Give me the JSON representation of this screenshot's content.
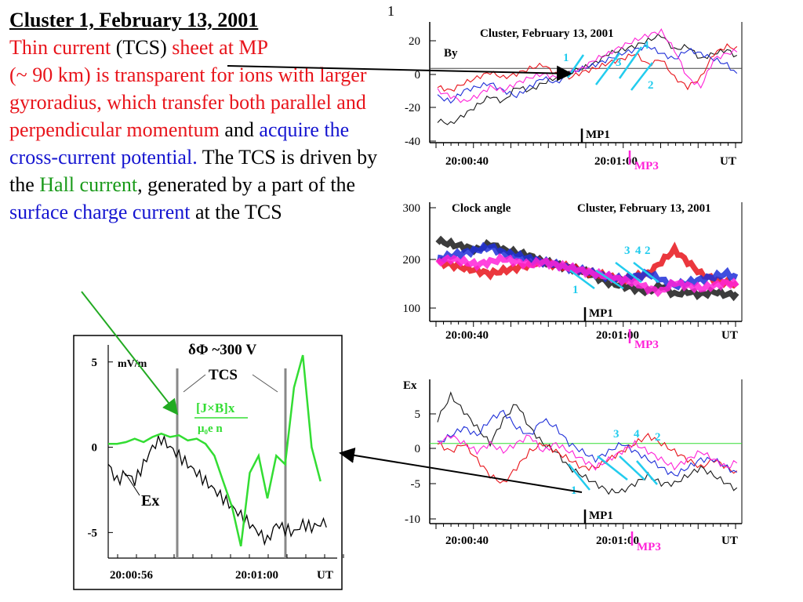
{
  "page_number": "1",
  "slide_text": {
    "title": "Cluster 1, February 13, 2001",
    "seg1": "Thin current",
    "seg2": " (TCS)",
    "seg3": " sheet at MP",
    "seg4": "(~ 90 km) is transparent for ions with larger gyroradius, which transfer both parallel and perpendicular momentum",
    "seg5": " and ",
    "seg6": "acquire the cross-current potential.",
    "seg7": " The TCS is driven by the ",
    "seg8": "Hall current",
    "seg9": ", generated by a part of the ",
    "seg10": "surface charge current",
    "seg11": " at the TCS"
  },
  "colors": {
    "black": "#1a1a1a",
    "red": "#e8141b",
    "blue": "#1f2fd8",
    "magenta": "#ff22d8",
    "cyan": "#22ccee",
    "green": "#33dd33"
  },
  "chart_data": [
    {
      "type": "line",
      "title": "Cluster, February 13, 2001",
      "ylabel": "By",
      "ylim": [
        -40,
        25
      ],
      "yticks": [
        "20",
        "0",
        "-20",
        "-40"
      ],
      "xticks": [
        "20:00:40",
        "20:01:00",
        "UT"
      ],
      "markers": [
        "MP1",
        "MP3"
      ],
      "spacecraft_labels": [
        "1",
        "2",
        "3",
        "4"
      ],
      "series": [
        {
          "name": "1",
          "color": "black",
          "values": [
            -28,
            -30,
            -25,
            -20,
            -15,
            -18,
            -10,
            -12,
            -8,
            -5,
            -2,
            0,
            3,
            8,
            10,
            12,
            15,
            18,
            10,
            12,
            5,
            8,
            10,
            5
          ]
        },
        {
          "name": "2",
          "color": "red",
          "values": [
            -10,
            -12,
            -8,
            -5,
            -2,
            -5,
            -3,
            0,
            2,
            -3,
            -5,
            -2,
            0,
            3,
            5,
            8,
            2,
            5,
            -5,
            -10,
            -5,
            8,
            12,
            10
          ]
        },
        {
          "name": "3",
          "color": "blue",
          "values": [
            -15,
            -18,
            -12,
            -10,
            -8,
            -12,
            -15,
            -10,
            -5,
            -8,
            -3,
            0,
            2,
            5,
            8,
            10,
            12,
            8,
            5,
            10,
            8,
            5,
            2,
            -5
          ]
        },
        {
          "name": "4",
          "color": "magenta",
          "values": [
            -12,
            -15,
            -18,
            -15,
            -10,
            -12,
            -8,
            -5,
            -3,
            -5,
            -2,
            0,
            5,
            8,
            12,
            15,
            18,
            20,
            10,
            -5,
            -10,
            5,
            8,
            10
          ]
        }
      ]
    },
    {
      "type": "line",
      "title": "Cluster, February 13, 2001",
      "ylabel": "Clock angle",
      "ylim": [
        100,
        300
      ],
      "yticks": [
        "300",
        "200",
        "100"
      ],
      "xticks": [
        "20:00:40",
        "20:01:00",
        "UT"
      ],
      "markers": [
        "MP1",
        "MP3"
      ],
      "spacecraft_labels": [
        "1",
        "2",
        "3",
        "4"
      ],
      "series": [
        {
          "name": "1",
          "color": "black",
          "values": [
            235,
            230,
            225,
            220,
            230,
            220,
            215,
            210,
            200,
            195,
            190,
            185,
            175,
            165,
            160,
            155,
            150,
            160,
            145,
            150,
            145,
            150,
            145,
            145
          ]
        },
        {
          "name": "2",
          "color": "red",
          "values": [
            200,
            195,
            190,
            185,
            180,
            185,
            190,
            195,
            200,
            195,
            190,
            185,
            180,
            175,
            170,
            175,
            180,
            200,
            220,
            200,
            180,
            170,
            165,
            160
          ]
        },
        {
          "name": "3",
          "color": "blue",
          "values": [
            205,
            210,
            215,
            220,
            225,
            215,
            210,
            205,
            200,
            195,
            190,
            185,
            180,
            175,
            170,
            175,
            180,
            170,
            160,
            165,
            170,
            175,
            180,
            170
          ]
        },
        {
          "name": "4",
          "color": "magenta",
          "values": [
            200,
            205,
            200,
            195,
            200,
            205,
            200,
            195,
            200,
            195,
            190,
            185,
            180,
            175,
            170,
            165,
            155,
            150,
            165,
            160,
            155,
            160,
            165,
            160
          ]
        }
      ]
    },
    {
      "type": "line",
      "title": "",
      "ylabel": "Ex",
      "ylim": [
        -10,
        8
      ],
      "yticks": [
        "5",
        "0",
        "-5",
        "-10"
      ],
      "xticks": [
        "20:00:40",
        "20:01:00",
        "UT"
      ],
      "markers": [
        "MP1",
        "MP3"
      ],
      "spacecraft_labels": [
        "1",
        "2",
        "3",
        "4"
      ],
      "series": [
        {
          "name": "1",
          "color": "black",
          "values": [
            3,
            6,
            4,
            2,
            0,
            3,
            5,
            2,
            0,
            -1,
            -3,
            -4,
            -5,
            -6,
            -6,
            -5,
            -4,
            -5,
            -5,
            -4,
            -3,
            -4,
            -5,
            -6
          ]
        },
        {
          "name": "2",
          "color": "red",
          "values": [
            0,
            -1,
            0,
            -2,
            -4,
            -5,
            -3,
            -1,
            0,
            -1,
            -2,
            -3,
            -3,
            -2,
            -1,
            0,
            1,
            0,
            -1,
            -2,
            -3,
            -2,
            -3,
            -4
          ]
        },
        {
          "name": "3",
          "color": "blue",
          "values": [
            0,
            1,
            2,
            1,
            3,
            4,
            2,
            1,
            3,
            2,
            0,
            -1,
            -2,
            -1,
            0,
            -1,
            -2,
            -3,
            -4,
            -3,
            -2,
            -2,
            -3,
            -4
          ]
        },
        {
          "name": "4",
          "color": "magenta",
          "values": [
            0,
            1,
            0,
            -1,
            0,
            -1,
            0,
            1,
            -1,
            0,
            -1,
            -2,
            -3,
            -2,
            -1,
            0,
            -1,
            -2,
            -3,
            -2,
            -1,
            -2,
            -3,
            -2
          ]
        }
      ]
    },
    {
      "type": "line",
      "title": "",
      "ylabel": "mV/m",
      "ylim": [
        -6.5,
        6
      ],
      "yticks": [
        "5",
        "0",
        "-5"
      ],
      "xticks": [
        "20:00:56",
        "20:01:00",
        "UT"
      ],
      "annotations": [
        "δΦ ~300 V",
        "TCS",
        "[J×B]x",
        "μ₀e n",
        "Ex"
      ],
      "series": [
        {
          "name": "Ex",
          "color": "black",
          "values": [
            -1,
            -2,
            -1.5,
            -2,
            -1,
            0,
            0.5,
            0,
            -0.5,
            -1,
            -1.5,
            -2,
            -2.5,
            -3,
            -3.5,
            -4,
            -4.5,
            -5,
            -5.5,
            -4.5,
            -4.8,
            -5,
            -4.5,
            -4.7,
            -4.5,
            -4.3
          ]
        },
        {
          "name": "[J×B]x",
          "color": "green",
          "values": [
            0.2,
            0.2,
            0.3,
            0.5,
            0.3,
            0.6,
            0.8,
            0.6,
            0.7,
            0.4,
            0.5,
            0.2,
            -0.5,
            -2,
            -3.5,
            -5.8,
            -1.5,
            -0.5,
            -3,
            -0.5,
            -1,
            3.5,
            5.4,
            0,
            -2,
            1.7
          ]
        }
      ]
    }
  ]
}
